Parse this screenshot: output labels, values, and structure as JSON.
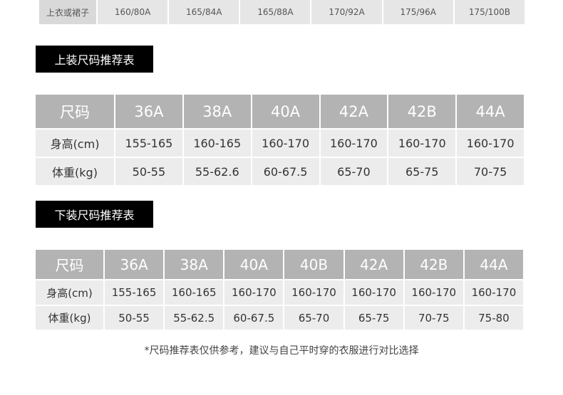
{
  "top_strip": {
    "label": "上衣或裙子",
    "values": [
      "160/80A",
      "165/84A",
      "165/88A",
      "170/92A",
      "175/96A",
      "175/100B"
    ]
  },
  "tops_table": {
    "title": "上装尺码推荐表",
    "header": [
      "尺码",
      "36A",
      "38A",
      "40A",
      "42A",
      "42B",
      "44A"
    ],
    "rows": [
      [
        "身高(cm)",
        "155-165",
        "160-165",
        "160-170",
        "160-170",
        "160-170",
        "160-170"
      ],
      [
        "体重(kg)",
        "50-55",
        "55-62.6",
        "60-67.5",
        "65-70",
        "65-75",
        "70-75"
      ]
    ]
  },
  "bottoms_table": {
    "title": "下装尺码推荐表",
    "header": [
      "尺码",
      "36A",
      "38A",
      "40A",
      "40B",
      "42A",
      "42B",
      "44A"
    ],
    "rows": [
      [
        "身高(cm)",
        "155-165",
        "160-165",
        "160-170",
        "160-170",
        "160-170",
        "160-170",
        "160-170"
      ],
      [
        "体重(kg)",
        "50-55",
        "55-62.5",
        "60-67.5",
        "65-70",
        "65-75",
        "70-75",
        "75-80"
      ]
    ]
  },
  "footnote": "*尺码推荐表仅供参考，建议与自己平时穿的衣服进行对比选择",
  "colors": {
    "header_bg": "#b3b3b3",
    "cell_bg": "#ececec",
    "title_bg": "#000000"
  }
}
